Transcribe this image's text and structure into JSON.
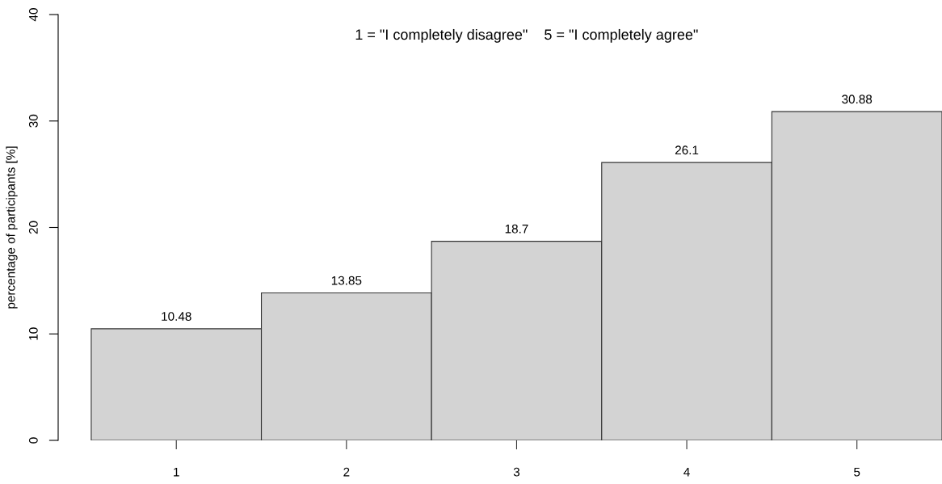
{
  "chart_data": {
    "type": "bar",
    "title": "1 = \"I completely disagree\"    5 = \"I completely agree\"",
    "ylabel": "percentage of participants [%]",
    "categories": [
      "1",
      "2",
      "3",
      "4",
      "5"
    ],
    "values": [
      10.48,
      13.85,
      18.7,
      26.1,
      30.88
    ],
    "color": "#d3d3d3",
    "data_labels": true,
    "ylim": [
      0,
      40
    ],
    "yticks": [
      0,
      10,
      20,
      30,
      40
    ],
    "grid": false
  }
}
